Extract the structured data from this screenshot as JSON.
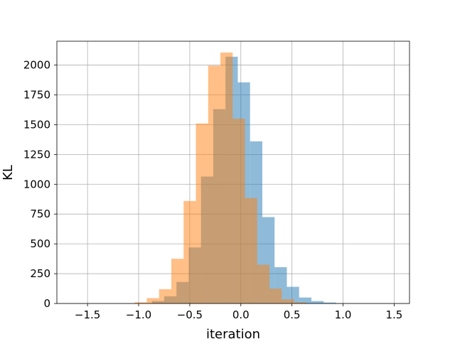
{
  "chart_data": {
    "type": "bar",
    "title": "",
    "xlabel": "iteration",
    "ylabel": "KL",
    "xlim": [
      -1.8,
      1.65
    ],
    "ylim": [
      0,
      2200
    ],
    "grid": true,
    "x_ticks": [
      -1.5,
      -1.0,
      -0.5,
      0.0,
      0.5,
      1.0,
      1.5
    ],
    "x_tick_labels": [
      "−1.5",
      "−1.0",
      "−0.5",
      "0.0",
      "0.5",
      "1.0",
      "1.5"
    ],
    "y_ticks": [
      0,
      250,
      500,
      750,
      1000,
      1250,
      1500,
      1750,
      2000
    ],
    "y_tick_labels": [
      "0",
      "250",
      "500",
      "750",
      "1000",
      "1250",
      "1500",
      "1750",
      "2000"
    ],
    "series": [
      {
        "color": "#1f77b4",
        "opacity": 0.5,
        "bins": [
          {
            "x0": -0.87,
            "x1": -0.75,
            "value": 20
          },
          {
            "x0": -0.75,
            "x1": -0.63,
            "value": 60
          },
          {
            "x0": -0.63,
            "x1": -0.51,
            "value": 180
          },
          {
            "x0": -0.51,
            "x1": -0.39,
            "value": 470
          },
          {
            "x0": -0.39,
            "x1": -0.27,
            "value": 1065
          },
          {
            "x0": -0.27,
            "x1": -0.15,
            "value": 1630
          },
          {
            "x0": -0.15,
            "x1": -0.03,
            "value": 2070
          },
          {
            "x0": -0.03,
            "x1": 0.09,
            "value": 1855
          },
          {
            "x0": 0.09,
            "x1": 0.21,
            "value": 1360
          },
          {
            "x0": 0.21,
            "x1": 0.33,
            "value": 725
          },
          {
            "x0": 0.33,
            "x1": 0.45,
            "value": 305
          },
          {
            "x0": 0.45,
            "x1": 0.57,
            "value": 140
          },
          {
            "x0": 0.57,
            "x1": 0.69,
            "value": 50
          },
          {
            "x0": 0.69,
            "x1": 0.81,
            "value": 20
          },
          {
            "x0": 0.81,
            "x1": 0.93,
            "value": 8
          },
          {
            "x0": 0.93,
            "x1": 1.05,
            "value": 2
          }
        ]
      },
      {
        "color": "#ff7f0e",
        "opacity": 0.5,
        "bins": [
          {
            "x0": -1.04,
            "x1": -0.92,
            "value": 10
          },
          {
            "x0": -0.92,
            "x1": -0.8,
            "value": 45
          },
          {
            "x0": -0.8,
            "x1": -0.68,
            "value": 120
          },
          {
            "x0": -0.68,
            "x1": -0.56,
            "value": 375
          },
          {
            "x0": -0.56,
            "x1": -0.44,
            "value": 860
          },
          {
            "x0": -0.44,
            "x1": -0.32,
            "value": 1510
          },
          {
            "x0": -0.32,
            "x1": -0.2,
            "value": 1995
          },
          {
            "x0": -0.2,
            "x1": -0.08,
            "value": 2105
          },
          {
            "x0": -0.08,
            "x1": 0.04,
            "value": 1550
          },
          {
            "x0": 0.04,
            "x1": 0.16,
            "value": 885
          },
          {
            "x0": 0.16,
            "x1": 0.28,
            "value": 325
          },
          {
            "x0": 0.28,
            "x1": 0.4,
            "value": 125
          },
          {
            "x0": 0.4,
            "x1": 0.52,
            "value": 35
          },
          {
            "x0": 0.52,
            "x1": 0.64,
            "value": 10
          }
        ]
      }
    ]
  }
}
